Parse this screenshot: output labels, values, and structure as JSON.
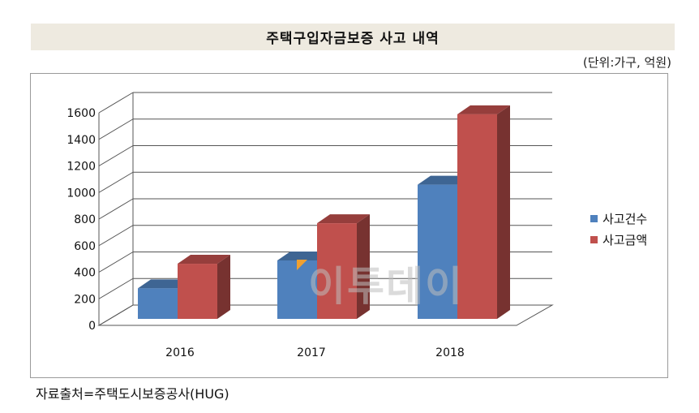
{
  "header": {
    "title": "주택구입자금보증 사고 내역",
    "unit_note": "(단위:가구, 억원)"
  },
  "footer": {
    "source": "자료출처=주택도시보증공사(HUG)"
  },
  "watermark": {
    "text": "이투데이"
  },
  "colors": {
    "series_1": "#4f81bd",
    "series_2": "#c0504d",
    "watermark_mark": "#f0a030"
  },
  "chart_data": {
    "type": "bar",
    "title": "주택구입자금보증 사고 내역",
    "categories": [
      "2016",
      "2017",
      "2018"
    ],
    "series": [
      {
        "name": "사고건수",
        "values": [
          230,
          440,
          1010
        ]
      },
      {
        "name": "사고금액",
        "values": [
          415,
          720,
          1540
        ]
      }
    ],
    "ylim": [
      0,
      1600
    ],
    "yticks": [
      0,
      200,
      400,
      600,
      800,
      1000,
      1200,
      1400,
      1600
    ],
    "grid": true,
    "legend_position": "right",
    "style": "3d-clustered-column"
  }
}
